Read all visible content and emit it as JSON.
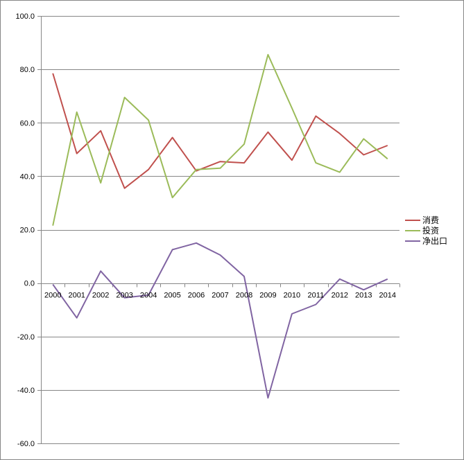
{
  "chart_data": {
    "type": "line",
    "title": "",
    "xlabel": "",
    "ylabel": "",
    "categories": [
      "2000",
      "2001",
      "2002",
      "2003",
      "2004",
      "2005",
      "2006",
      "2007",
      "2008",
      "2009",
      "2010",
      "2011",
      "2012",
      "2013",
      "2014"
    ],
    "ylim": [
      -60,
      100
    ],
    "y_ticks": [
      "100.0",
      "80.0",
      "60.0",
      "40.0",
      "20.0",
      "0.0",
      "-20.0",
      "-40.0",
      "-60.0"
    ],
    "y_tick_values": [
      100,
      80,
      60,
      40,
      20,
      0,
      -20,
      -40,
      -60
    ],
    "grid": "horizontal",
    "legend_position": "right",
    "series": [
      {
        "name": "消费",
        "color": "#c0504d",
        "values": [
          78.5,
          48.5,
          57.0,
          35.5,
          42.5,
          54.5,
          42.0,
          45.5,
          45.0,
          56.5,
          46.0,
          62.5,
          56.0,
          48.0,
          51.5
        ]
      },
      {
        "name": "投资",
        "color": "#9bbb59",
        "values": [
          21.5,
          64.0,
          37.5,
          69.5,
          61.0,
          32.0,
          42.5,
          43.0,
          52.0,
          85.5,
          65.5,
          45.0,
          41.5,
          54.0,
          46.5
        ]
      },
      {
        "name": "净出口",
        "color": "#8064a2",
        "values": [
          -0.5,
          -13.0,
          4.5,
          -5.5,
          -4.5,
          12.5,
          15.0,
          10.5,
          2.5,
          -43.0,
          -11.5,
          -8.0,
          1.5,
          -2.5,
          1.5
        ]
      }
    ]
  }
}
